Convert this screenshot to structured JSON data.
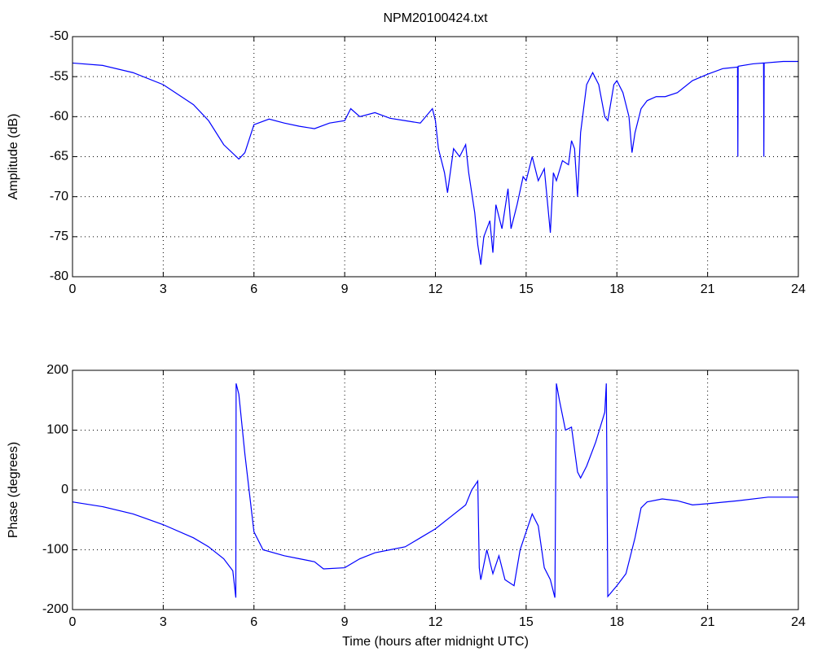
{
  "chart_data": [
    {
      "type": "line",
      "title": "NPM20100424.txt",
      "ylabel": "Amplitude (dB)",
      "x": [
        0,
        1,
        2,
        3,
        4,
        4.5,
        5,
        5.5,
        5.7,
        6,
        6.5,
        7,
        7.5,
        8,
        8.5,
        9,
        9.2,
        9.5,
        10,
        10.5,
        11,
        11.5,
        11.9,
        12,
        12.1,
        12.3,
        12.4,
        12.6,
        12.8,
        13,
        13.1,
        13.3,
        13.4,
        13.5,
        13.6,
        13.8,
        13.9,
        14,
        14.2,
        14.4,
        14.5,
        14.7,
        14.9,
        15,
        15.2,
        15.4,
        15.6,
        15.8,
        15.9,
        16,
        16.2,
        16.4,
        16.5,
        16.6,
        16.7,
        16.8,
        17,
        17.2,
        17.4,
        17.6,
        17.7,
        17.9,
        18,
        18.2,
        18.4,
        18.5,
        18.6,
        18.8,
        19,
        19.3,
        19.6,
        20,
        20.5,
        21,
        21.5,
        21.99,
        22,
        22.01,
        22.5,
        22.85,
        22.86,
        22.87,
        23.5,
        24
      ],
      "series": [
        {
          "color": "#0000ff",
          "values": [
            -53.3,
            -53.6,
            -54.5,
            -56,
            -58.5,
            -60.5,
            -63.5,
            -65.3,
            -64.5,
            -61,
            -60.3,
            -60.8,
            -61.2,
            -61.5,
            -60.8,
            -60.5,
            -59,
            -60,
            -59.5,
            -60.2,
            -60.5,
            -60.8,
            -59,
            -60.5,
            -64,
            -67,
            -69.5,
            -64,
            -65,
            -63.5,
            -67,
            -72,
            -76,
            -78.5,
            -75,
            -73,
            -77,
            -71,
            -74,
            -69,
            -74,
            -71,
            -67.5,
            -68,
            -65,
            -68,
            -66.5,
            -74.5,
            -67,
            -68,
            -65.5,
            -66,
            -63,
            -64,
            -70,
            -62,
            -56,
            -54.5,
            -56,
            -60,
            -60.5,
            -56,
            -55.5,
            -57,
            -60,
            -64.5,
            -62,
            -59,
            -58,
            -57.5,
            -57.5,
            -57,
            -55.5,
            -54.7,
            -54,
            -53.8,
            -65,
            -53.7,
            -53.4,
            -53.3,
            -65,
            -53.3,
            -53.1,
            -53.1
          ]
        }
      ],
      "xlim": [
        0,
        24
      ],
      "xticks": [
        0,
        3,
        6,
        9,
        12,
        15,
        18,
        21,
        24
      ],
      "ylim": [
        -80,
        -50
      ],
      "yticks": [
        -80,
        -75,
        -70,
        -65,
        -60,
        -55,
        -50
      ],
      "grid": true
    },
    {
      "type": "line",
      "xlabel": "Time (hours after midnight UTC)",
      "ylabel": "Phase (degrees)",
      "x": [
        0,
        1,
        2,
        3,
        4,
        4.5,
        5,
        5.3,
        5.4,
        5.41,
        5.5,
        5.7,
        6,
        6.3,
        7,
        7.5,
        8,
        8.3,
        9,
        9.5,
        10,
        10.5,
        11,
        11.5,
        12,
        12.5,
        13,
        13.2,
        13.4,
        13.45,
        13.5,
        13.7,
        13.9,
        14.1,
        14.3,
        14.6,
        14.8,
        15,
        15.2,
        15.4,
        15.6,
        15.8,
        15.95,
        16,
        16.1,
        16.3,
        16.5,
        16.7,
        16.8,
        17,
        17.3,
        17.6,
        17.65,
        17.7,
        18,
        18.3,
        18.6,
        18.8,
        19,
        19.5,
        20,
        20.5,
        21,
        22,
        23,
        24
      ],
      "series": [
        {
          "color": "#0000ff",
          "values": [
            -20,
            -28,
            -40,
            -58,
            -80,
            -95,
            -115,
            -135,
            -180,
            178,
            160,
            60,
            -70,
            -100,
            -110,
            -115,
            -120,
            -132,
            -130,
            -115,
            -105,
            -100,
            -95,
            -80,
            -65,
            -45,
            -25,
            0,
            15,
            -130,
            -150,
            -100,
            -140,
            -110,
            -150,
            -160,
            -100,
            -70,
            -40,
            -60,
            -130,
            -150,
            -180,
            178,
            150,
            100,
            105,
            30,
            20,
            40,
            80,
            130,
            178,
            -178,
            -160,
            -140,
            -80,
            -30,
            -20,
            -15,
            -18,
            -25,
            -23,
            -18,
            -12,
            -12
          ]
        }
      ],
      "xlim": [
        0,
        24
      ],
      "xticks": [
        0,
        3,
        6,
        9,
        12,
        15,
        18,
        21,
        24
      ],
      "ylim": [
        -200,
        200
      ],
      "yticks": [
        -200,
        -100,
        0,
        100,
        200
      ],
      "grid": true
    }
  ]
}
